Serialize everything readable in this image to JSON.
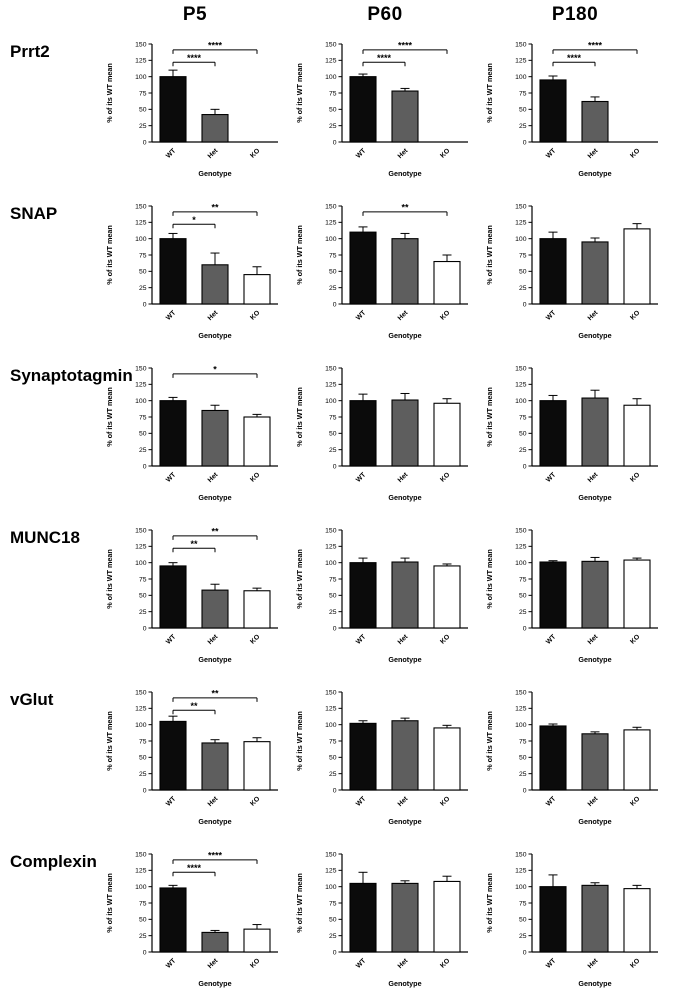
{
  "figure_title": "",
  "chart_data": {
    "type": "bar",
    "shared": {
      "categories": [
        "WT",
        "Het",
        "KO"
      ],
      "ylabel": "% of its WT mean",
      "xlabel": "Genotype",
      "ylim": [
        0,
        150
      ],
      "yticks": [
        0,
        25,
        50,
        75,
        100,
        125,
        150
      ],
      "bar_colors": {
        "WT": "#0b0b0b",
        "Het": "#5e5e5e",
        "KO": "#ffffff"
      },
      "error_bar_style": "upper-sem",
      "grid": false,
      "legend": "none"
    },
    "columns": [
      "P5",
      "P60",
      "P180"
    ],
    "rows": [
      "Prrt2",
      "SNAP",
      "Synaptotagmin",
      "MUNC18",
      "vGlut",
      "Complexin"
    ],
    "charts": [
      {
        "row": "Prrt2",
        "column": "P5",
        "values": [
          100,
          42,
          0
        ],
        "errors": [
          10,
          8,
          0
        ],
        "significance": [
          {
            "pair": [
              "WT",
              "Het"
            ],
            "label": "****",
            "level": 1
          },
          {
            "pair": [
              "WT",
              "KO"
            ],
            "label": "****",
            "level": 2
          }
        ]
      },
      {
        "row": "Prrt2",
        "column": "P60",
        "values": [
          100,
          78,
          0
        ],
        "errors": [
          4,
          4,
          0
        ],
        "significance": [
          {
            "pair": [
              "WT",
              "Het"
            ],
            "label": "****",
            "level": 1
          },
          {
            "pair": [
              "WT",
              "KO"
            ],
            "label": "****",
            "level": 2
          }
        ]
      },
      {
        "row": "Prrt2",
        "column": "P180",
        "values": [
          95,
          62,
          0
        ],
        "errors": [
          6,
          7,
          0
        ],
        "significance": [
          {
            "pair": [
              "WT",
              "Het"
            ],
            "label": "****",
            "level": 1
          },
          {
            "pair": [
              "WT",
              "KO"
            ],
            "label": "****",
            "level": 2
          }
        ]
      },
      {
        "row": "SNAP",
        "column": "P5",
        "values": [
          100,
          60,
          45
        ],
        "errors": [
          8,
          18,
          12
        ],
        "significance": [
          {
            "pair": [
              "WT",
              "Het"
            ],
            "label": "*",
            "level": 1
          },
          {
            "pair": [
              "WT",
              "KO"
            ],
            "label": "**",
            "level": 2
          }
        ]
      },
      {
        "row": "SNAP",
        "column": "P60",
        "values": [
          110,
          100,
          65
        ],
        "errors": [
          8,
          8,
          10
        ],
        "significance": [
          {
            "pair": [
              "WT",
              "KO"
            ],
            "label": "**",
            "level": 2
          }
        ]
      },
      {
        "row": "SNAP",
        "column": "P180",
        "values": [
          100,
          95,
          115
        ],
        "errors": [
          10,
          6,
          8
        ],
        "significance": []
      },
      {
        "row": "Synaptotagmin",
        "column": "P5",
        "values": [
          100,
          85,
          75
        ],
        "errors": [
          5,
          8,
          4
        ],
        "significance": [
          {
            "pair": [
              "WT",
              "KO"
            ],
            "label": "*",
            "level": 2
          }
        ]
      },
      {
        "row": "Synaptotagmin",
        "column": "P60",
        "values": [
          100,
          101,
          96
        ],
        "errors": [
          10,
          10,
          7
        ],
        "significance": []
      },
      {
        "row": "Synaptotagmin",
        "column": "P180",
        "values": [
          100,
          104,
          93
        ],
        "errors": [
          8,
          12,
          10
        ],
        "significance": []
      },
      {
        "row": "MUNC18",
        "column": "P5",
        "values": [
          95,
          58,
          57
        ],
        "errors": [
          5,
          9,
          4
        ],
        "significance": [
          {
            "pair": [
              "WT",
              "Het"
            ],
            "label": "**",
            "level": 1
          },
          {
            "pair": [
              "WT",
              "KO"
            ],
            "label": "**",
            "level": 2
          }
        ]
      },
      {
        "row": "MUNC18",
        "column": "P60",
        "values": [
          100,
          101,
          95
        ],
        "errors": [
          7,
          6,
          3
        ],
        "significance": []
      },
      {
        "row": "MUNC18",
        "column": "P180",
        "values": [
          101,
          102,
          104
        ],
        "errors": [
          2,
          6,
          3
        ],
        "significance": []
      },
      {
        "row": "vGlut",
        "column": "P5",
        "values": [
          105,
          72,
          74
        ],
        "errors": [
          8,
          5,
          6
        ],
        "significance": [
          {
            "pair": [
              "WT",
              "Het"
            ],
            "label": "**",
            "level": 1
          },
          {
            "pair": [
              "WT",
              "KO"
            ],
            "label": "**",
            "level": 2
          }
        ]
      },
      {
        "row": "vGlut",
        "column": "P60",
        "values": [
          102,
          106,
          95
        ],
        "errors": [
          4,
          4,
          4
        ],
        "significance": []
      },
      {
        "row": "vGlut",
        "column": "P180",
        "values": [
          98,
          86,
          92
        ],
        "errors": [
          3,
          3,
          4
        ],
        "significance": []
      },
      {
        "row": "Complexin",
        "column": "P5",
        "values": [
          98,
          30,
          35
        ],
        "errors": [
          4,
          3,
          7
        ],
        "significance": [
          {
            "pair": [
              "WT",
              "Het"
            ],
            "label": "****",
            "level": 1
          },
          {
            "pair": [
              "WT",
              "KO"
            ],
            "label": "****",
            "level": 2
          }
        ]
      },
      {
        "row": "Complexin",
        "column": "P60",
        "values": [
          105,
          105,
          108
        ],
        "errors": [
          17,
          4,
          8
        ],
        "significance": []
      },
      {
        "row": "Complexin",
        "column": "P180",
        "values": [
          100,
          102,
          97
        ],
        "errors": [
          18,
          4,
          5
        ],
        "significance": []
      }
    ]
  }
}
